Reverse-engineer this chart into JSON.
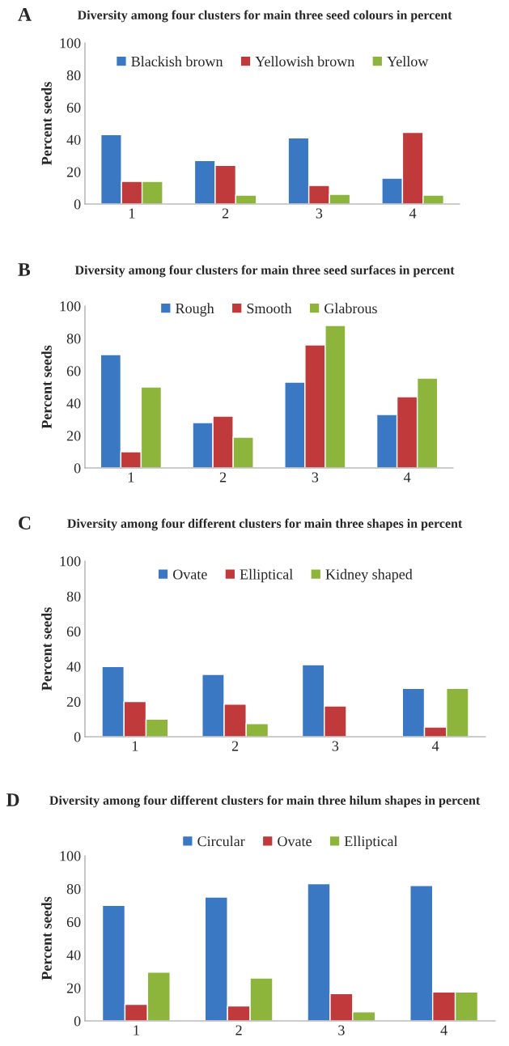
{
  "chart_data": [
    {
      "type": "bar",
      "title": "Diversity among four clusters for main three seed colours in percent",
      "annotations": [
        "A"
      ],
      "ylabel": "Percent seeds",
      "categories": [
        "1",
        "2",
        "3",
        "4"
      ],
      "ylim": [
        0,
        100
      ],
      "yticks": [
        0,
        20,
        40,
        60,
        80,
        100
      ],
      "grid": false,
      "legend": "top",
      "series": [
        {
          "name": "Blackish brown",
          "color": "#3a78c3",
          "values": [
            43,
            27,
            41,
            16
          ]
        },
        {
          "name": "Yellowish brown",
          "color": "#c0393b",
          "values": [
            14,
            24,
            11.5,
            44.5
          ]
        },
        {
          "name": "Yellow",
          "color": "#8db53c",
          "values": [
            14,
            5.5,
            6,
            5.5
          ]
        }
      ]
    },
    {
      "type": "bar",
      "title": "Diversity among four clusters for main three seed surfaces in percent",
      "annotations": [
        "B"
      ],
      "ylabel": "Percent seeds",
      "categories": [
        "1",
        "2",
        "3",
        "4"
      ],
      "ylim": [
        0,
        100
      ],
      "yticks": [
        0,
        20,
        40,
        60,
        80,
        100
      ],
      "grid": false,
      "legend": "top",
      "series": [
        {
          "name": "Rough",
          "color": "#3a78c3",
          "values": [
            70,
            28,
            53,
            33
          ]
        },
        {
          "name": "Smooth",
          "color": "#c0393b",
          "values": [
            10,
            32,
            76,
            44
          ]
        },
        {
          "name": "Glabrous",
          "color": "#8db53c",
          "values": [
            50,
            19,
            88,
            55.5
          ]
        }
      ]
    },
    {
      "type": "bar",
      "title": "Diversity among four different clusters for main three shapes in percent",
      "annotations": [
        "C"
      ],
      "ylabel": "Percent seeds",
      "categories": [
        "1",
        "2",
        "3",
        "4"
      ],
      "ylim": [
        0,
        100
      ],
      "yticks": [
        0,
        20,
        40,
        60,
        80,
        100
      ],
      "grid": false,
      "legend": "top",
      "series": [
        {
          "name": "Ovate",
          "color": "#3a78c3",
          "values": [
            40,
            35.5,
            41,
            27.5
          ]
        },
        {
          "name": "Elliptical",
          "color": "#c0393b",
          "values": [
            20,
            18.5,
            17.5,
            5.5
          ]
        },
        {
          "name": "Kidney shaped",
          "color": "#8db53c",
          "values": [
            10,
            7.5,
            null,
            27.5
          ]
        }
      ]
    },
    {
      "type": "bar",
      "title": "Diversity among four different clusters for main three hilum shapes in percent",
      "annotations": [
        "D"
      ],
      "ylabel": "Percent seeds",
      "categories": [
        "1",
        "2",
        "3",
        "4"
      ],
      "ylim": [
        0,
        100
      ],
      "yticks": [
        0,
        20,
        40,
        60,
        80,
        100
      ],
      "grid": false,
      "legend": "top",
      "series": [
        {
          "name": "Circular",
          "color": "#3a78c3",
          "values": [
            70,
            75,
            83,
            82
          ]
        },
        {
          "name": "Ovate",
          "color": "#c0393b",
          "values": [
            10,
            9,
            16.5,
            17.5
          ]
        },
        {
          "name": "Elliptical",
          "color": "#8db53c",
          "values": [
            29.5,
            26,
            5.5,
            17.5
          ]
        }
      ]
    }
  ]
}
